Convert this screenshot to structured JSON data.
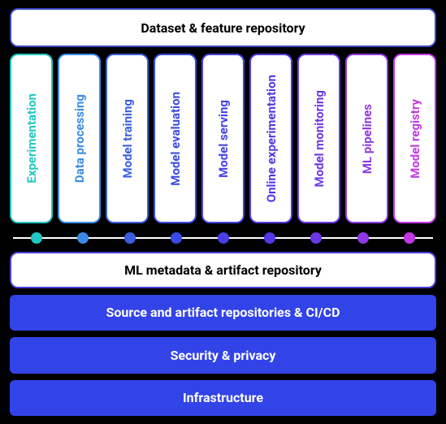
{
  "type": "infographic",
  "background_color": "#000000",
  "top_bar": {
    "label": "Dataset & feature repository",
    "border_color": "#3d47c9",
    "text_color": "#000000",
    "bg_color": "#ffffff",
    "fontsize": 16
  },
  "columns": [
    {
      "label": "Experimentation",
      "color": "#1fc8c2"
    },
    {
      "label": "Data processing",
      "color": "#3a8be6"
    },
    {
      "label": "Model training",
      "color": "#3a5de0"
    },
    {
      "label": "Model evaluation",
      "color": "#3a4ae6"
    },
    {
      "label": "Model serving",
      "color": "#4640e6"
    },
    {
      "label": "Online experimentation",
      "color": "#5238e6"
    },
    {
      "label": "Model monitoring",
      "color": "#6a38e6"
    },
    {
      "label": "ML pipelines",
      "color": "#8f38e6"
    },
    {
      "label": "Model registry",
      "color": "#c238e6"
    }
  ],
  "column_style": {
    "bg_color": "#ffffff",
    "border_radius": 10,
    "fontsize": 15
  },
  "timeline": {
    "line_color": "#ffffff",
    "dot_radius": 7
  },
  "mid_bar": {
    "label": "ML metadata & artifact repository",
    "border_color": "#4a3fd8",
    "text_color": "#000000",
    "bg_color": "#ffffff",
    "fontsize": 16
  },
  "bottom_bars": [
    {
      "label": "Source and artifact repositories & CI/CD",
      "bg_color": "#3243e8",
      "text_color": "#ffffff"
    },
    {
      "label": "Security & privacy",
      "bg_color": "#3243e8",
      "text_color": "#ffffff"
    },
    {
      "label": "Infrastructure",
      "bg_color": "#3243e8",
      "text_color": "#ffffff"
    }
  ],
  "bottom_bar_style": {
    "fontsize": 16,
    "border_radius": 6
  }
}
